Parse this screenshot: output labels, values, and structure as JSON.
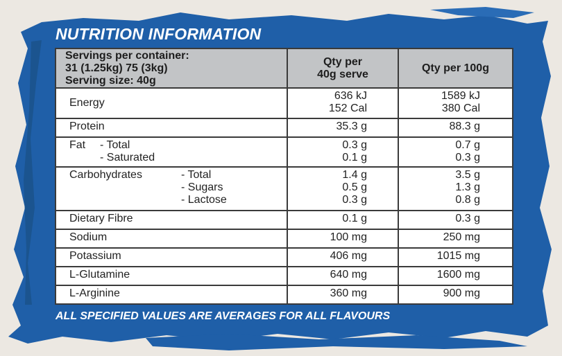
{
  "title": "NUTRITION INFORMATION",
  "header": {
    "servings_line1": "Servings per container:",
    "servings_line2": "31 (1.25kg) 75 (3kg)",
    "serving_size": "Serving size: 40g",
    "col_serve_line1": "Qty per",
    "col_serve_line2": "40g serve",
    "col_100g": "Qty per 100g"
  },
  "rows": {
    "energy": {
      "label": "Energy",
      "serve": [
        "636 kJ",
        "152 Cal"
      ],
      "per100": [
        "1589 kJ",
        "380 Cal"
      ]
    },
    "protein": {
      "label": "Protein",
      "serve": "35.3 g",
      "per100": "88.3 g"
    },
    "fat": {
      "label": "Fat",
      "subs": [
        "- Total",
        "- Saturated"
      ],
      "serve": [
        "0.3 g",
        "0.1 g"
      ],
      "per100": [
        "0.7 g",
        "0.3 g"
      ]
    },
    "carbs": {
      "label": "Carbohydrates",
      "subs": [
        "- Total",
        "- Sugars",
        "- Lactose"
      ],
      "serve": [
        "1.4 g",
        "0.5 g",
        "0.3 g"
      ],
      "per100": [
        "3.5 g",
        "1.3 g",
        "0.8 g"
      ]
    },
    "fibre": {
      "label": "Dietary Fibre",
      "serve": "0.1 g",
      "per100": "0.3 g"
    },
    "sodium": {
      "label": "Sodium",
      "serve": "100 mg",
      "per100": "250 mg"
    },
    "potassium": {
      "label": "Potassium",
      "serve": "406 mg",
      "per100": "1015 mg"
    },
    "glutamine": {
      "label": "L-Glutamine",
      "serve": "640 mg",
      "per100": "1600 mg"
    },
    "arginine": {
      "label": "L-Arginine",
      "serve": "360 mg",
      "per100": "900 mg"
    }
  },
  "footer_note": "ALL SPECIFIED VALUES ARE AVERAGES FOR ALL FLAVOURS",
  "colors": {
    "panel_blue": "#1f5fa8",
    "header_gray": "#c2c4c6",
    "page_bg": "#ece8e2"
  }
}
